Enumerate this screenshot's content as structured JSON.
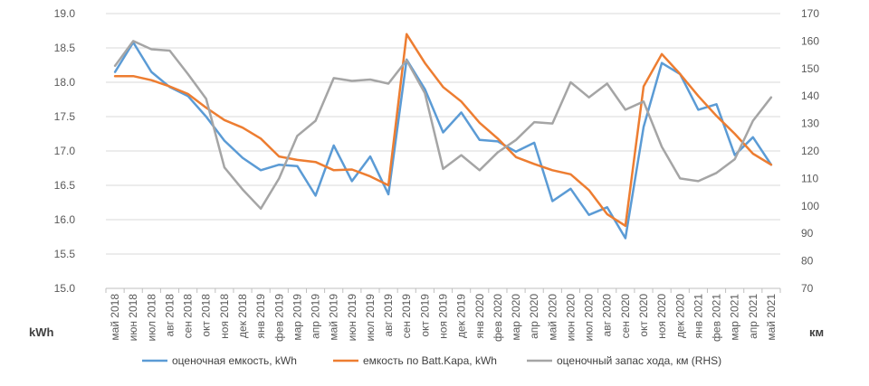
{
  "chart_data": {
    "type": "line",
    "y_left_unit": "kWh",
    "y_right_unit": "км",
    "ylim_left": [
      15.0,
      19.0
    ],
    "ylim_right": [
      70,
      170
    ],
    "y_left_ticks": [
      "15.0",
      "15.5",
      "16.0",
      "16.5",
      "17.0",
      "17.5",
      "18.0",
      "18.5",
      "19.0"
    ],
    "y_right_ticks": [
      "70",
      "80",
      "90",
      "100",
      "110",
      "120",
      "130",
      "140",
      "150",
      "160",
      "170"
    ],
    "grid": true,
    "legend_position": "bottom",
    "categories": [
      "май 2018",
      "июн 2018",
      "июл 2018",
      "авг 2018",
      "сен 2018",
      "окт 2018",
      "ноя 2018",
      "дек 2018",
      "янв 2019",
      "фев 2019",
      "мар 2019",
      "апр 2019",
      "май 2019",
      "июн 2019",
      "июл 2019",
      "авг 2019",
      "сен 2019",
      "окт 2019",
      "ноя 2019",
      "дек 2019",
      "янв 2020",
      "фев 2020",
      "мар 2020",
      "апр 2020",
      "май 2020",
      "июн 2020",
      "июл 2020",
      "авг 2020",
      "сен 2020",
      "окт 2020",
      "ноя 2020",
      "дек 2020",
      "янв 2021",
      "фев 2021",
      "мар 2021",
      "апр 2021",
      "май 2021"
    ],
    "series": [
      {
        "name": "оценочная емкость, kWh",
        "axis": "left",
        "color": "#5b9bd5",
        "values": [
          18.15,
          18.58,
          18.15,
          17.93,
          17.8,
          17.5,
          17.15,
          16.9,
          16.72,
          16.8,
          16.78,
          16.35,
          17.08,
          16.56,
          16.92,
          16.37,
          18.33,
          17.9,
          17.27,
          17.56,
          17.16,
          17.14,
          16.99,
          17.12,
          16.27,
          16.45,
          16.07,
          16.18,
          15.73,
          17.35,
          18.28,
          18.12,
          17.6,
          17.68,
          16.94,
          17.2,
          16.8
        ]
      },
      {
        "name": "емкость по Batt.Kapa, kWh",
        "axis": "left",
        "color": "#ed7d31",
        "values": [
          18.09,
          18.09,
          18.03,
          17.94,
          17.83,
          17.63,
          17.45,
          17.34,
          17.18,
          16.92,
          16.87,
          16.84,
          16.72,
          16.73,
          16.63,
          16.5,
          18.7,
          18.28,
          17.93,
          17.72,
          17.41,
          17.18,
          16.91,
          16.81,
          16.72,
          16.66,
          16.43,
          16.08,
          15.91,
          17.94,
          18.41,
          18.12,
          17.8,
          17.51,
          17.25,
          16.96,
          16.8
        ]
      },
      {
        "name": "оценочный запас хода, км (RHS)",
        "axis": "right",
        "color": "#a5a5a5",
        "values": [
          151.0,
          160.0,
          157.0,
          156.5,
          148.0,
          139.0,
          114.0,
          106.0,
          99.0,
          110.0,
          125.5,
          131.0,
          146.5,
          145.5,
          146.0,
          144.5,
          153.0,
          141.0,
          113.5,
          118.5,
          113.0,
          119.5,
          124.0,
          130.5,
          130.0,
          145.0,
          139.5,
          144.5,
          135.0,
          138.0,
          121.5,
          110.0,
          109.0,
          112.0,
          117.0,
          131.0,
          139.5
        ]
      }
    ]
  }
}
